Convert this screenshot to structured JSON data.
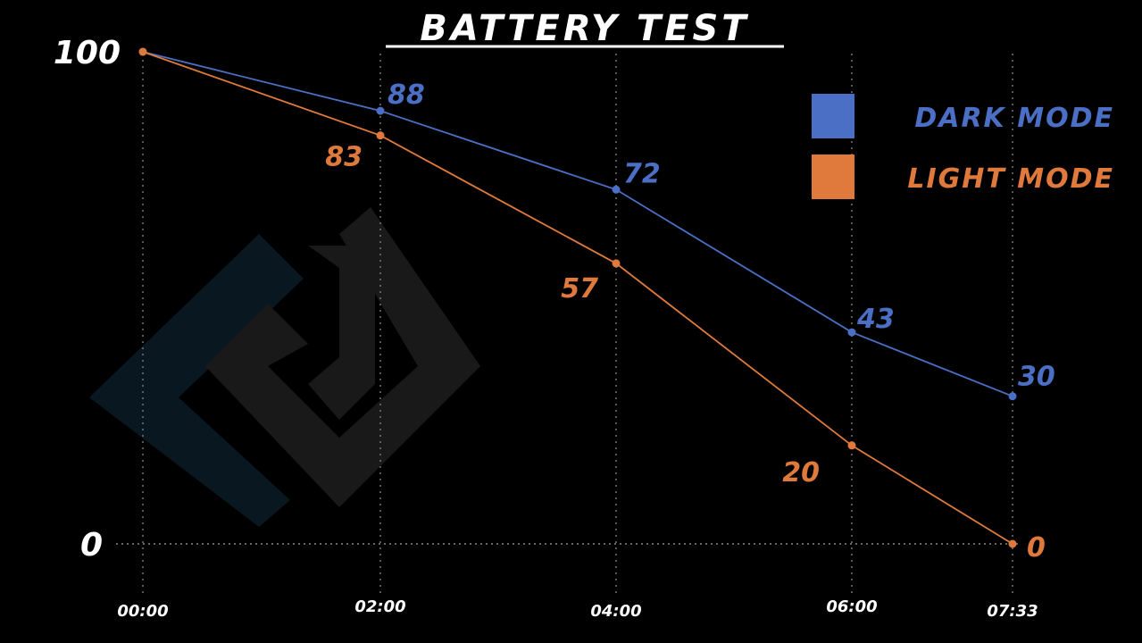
{
  "chart_data": {
    "type": "line",
    "title": "BATTERY TEST",
    "x": [
      "00:00",
      "02:00",
      "04:00",
      "06:00",
      "07:33"
    ],
    "ylim": [
      0,
      100
    ],
    "yticks": [
      "0",
      "100"
    ],
    "grid": "dotted vertical lines at each x and horizontal at 0",
    "legend_placement": "top-right",
    "series": [
      {
        "name": "DARK MODE",
        "color": "#4a6fc4",
        "values": [
          100,
          88,
          72,
          43,
          30
        ],
        "labels": [
          "",
          "88",
          "72",
          "43",
          "30"
        ]
      },
      {
        "name": "LIGHT MODE",
        "color": "#e07a3c",
        "values": [
          100,
          83,
          57,
          20,
          0
        ],
        "labels": [
          "",
          "83",
          "57",
          "20",
          "0"
        ]
      }
    ]
  },
  "watermark": "logo"
}
